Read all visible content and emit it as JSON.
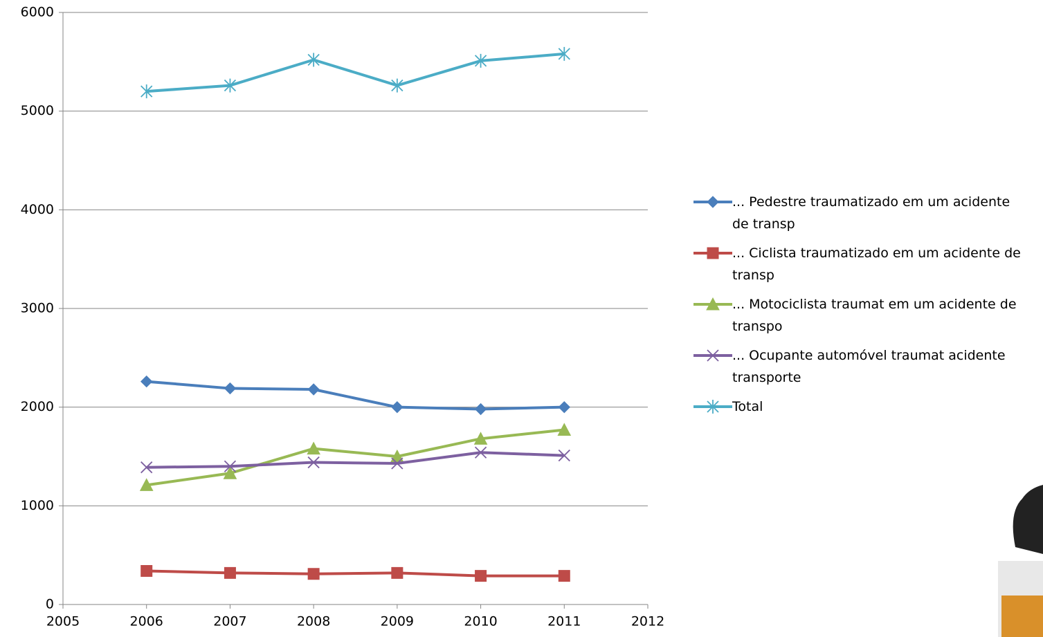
{
  "chart_data": {
    "type": "line",
    "x": [
      2006,
      2007,
      2008,
      2009,
      2010,
      2011
    ],
    "xlim": [
      2005,
      2012
    ],
    "xticks": [
      2005,
      2006,
      2007,
      2008,
      2009,
      2010,
      2011,
      2012
    ],
    "ylim": [
      0,
      6000
    ],
    "yticks": [
      0,
      1000,
      2000,
      3000,
      4000,
      5000,
      6000
    ],
    "grid": true,
    "legend": "right",
    "series": [
      {
        "name": "... Pedestre traumatizado em um acidente de transp",
        "color": "#4a7ebb",
        "marker": "diamond",
        "values": [
          2260,
          2190,
          2180,
          2000,
          1980,
          2000
        ]
      },
      {
        "name": "... Ciclista traumatizado em um acidente de transp",
        "color": "#be4b48",
        "marker": "square",
        "values": [
          340,
          320,
          310,
          320,
          290,
          290
        ]
      },
      {
        "name": "... Motociclista traumat em um acidente de transpo",
        "color": "#98b954",
        "marker": "triangle",
        "values": [
          1210,
          1330,
          1580,
          1500,
          1680,
          1770
        ]
      },
      {
        "name": "... Ocupante automóvel traumat acidente transporte",
        "color": "#7d60a0",
        "marker": "x",
        "values": [
          1390,
          1400,
          1440,
          1430,
          1540,
          1510
        ]
      },
      {
        "name": "Total",
        "color": "#4bacc6",
        "marker": "star",
        "values": [
          5200,
          5260,
          5520,
          5260,
          5510,
          5580
        ]
      }
    ]
  }
}
